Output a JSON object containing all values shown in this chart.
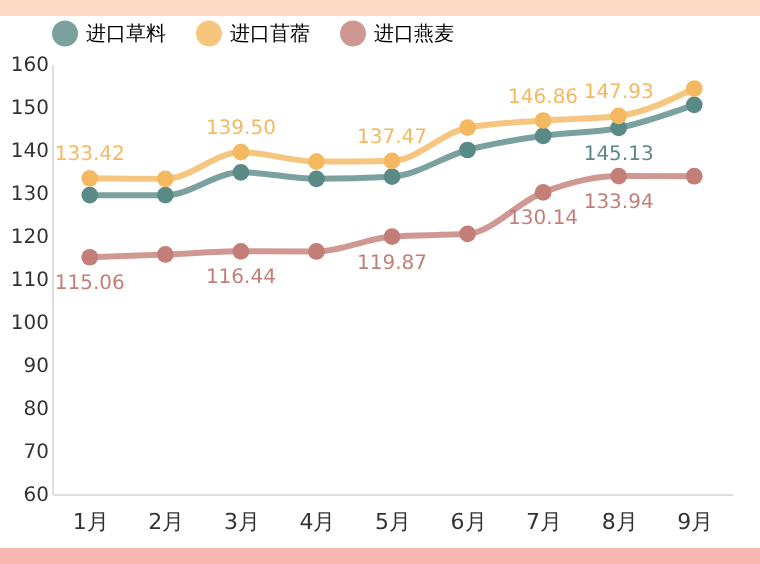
{
  "chart_data": {
    "type": "line",
    "categories": [
      "1月",
      "2月",
      "3月",
      "4月",
      "5月",
      "6月",
      "7月",
      "8月",
      "9月"
    ],
    "series": [
      {
        "name": "进口草料",
        "color": "#5a8a86",
        "values": [
          129.5,
          129.5,
          134.8,
          133.3,
          133.8,
          140,
          143.3,
          145.13,
          150.5
        ],
        "value_labels": [
          null,
          null,
          null,
          null,
          null,
          null,
          null,
          "145.13",
          null
        ]
      },
      {
        "name": "进口苜蓿",
        "color": "#f4b860",
        "values": [
          133.42,
          133.3,
          139.5,
          137.3,
          137.47,
          145.2,
          146.86,
          147.93,
          154.3
        ],
        "value_labels": [
          "133.42",
          null,
          "139.50",
          null,
          "137.47",
          null,
          "146.86",
          "147.93",
          null
        ]
      },
      {
        "name": "进口燕麦",
        "color": "#c47e78",
        "values": [
          115.06,
          115.7,
          116.44,
          116.4,
          119.87,
          120.5,
          130.14,
          133.94,
          133.9
        ],
        "value_labels": [
          "115.06",
          null,
          "116.44",
          null,
          "119.87",
          null,
          "130.14",
          "133.94",
          null
        ]
      }
    ],
    "ylim": [
      60,
      160
    ],
    "yticks": [
      60,
      70,
      80,
      90,
      100,
      110,
      120,
      130,
      140,
      150,
      160
    ],
    "legend": "top",
    "marker": "circle",
    "grid": false,
    "line_style": "solid"
  }
}
